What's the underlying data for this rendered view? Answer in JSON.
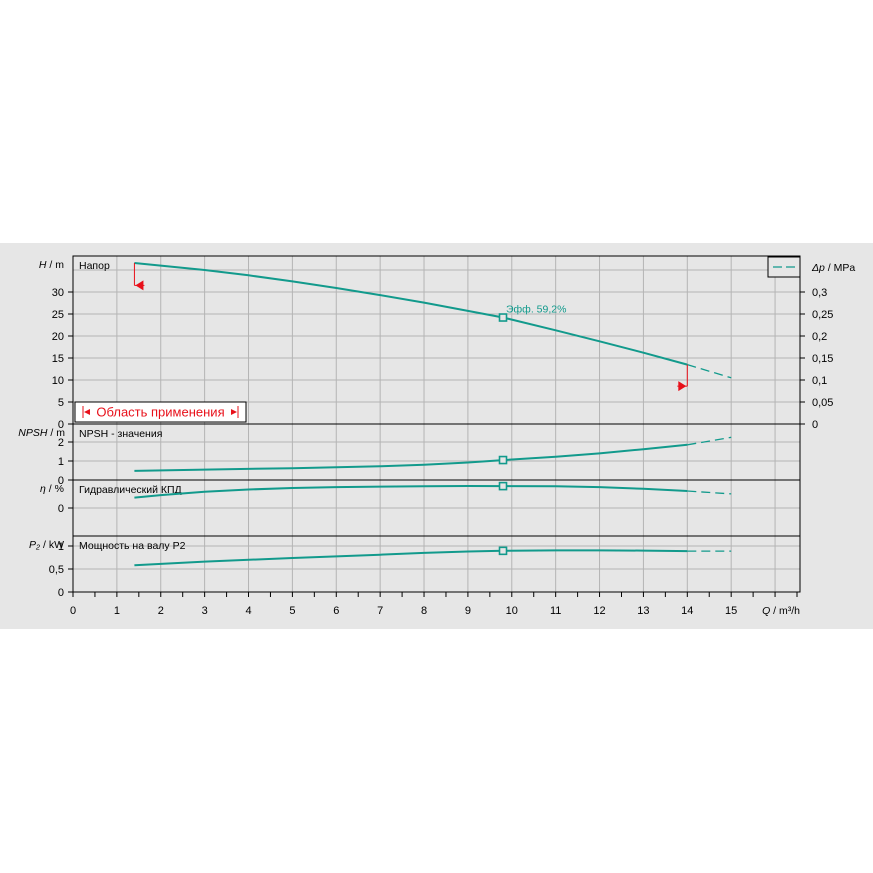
{
  "chart_data": {
    "type": "line",
    "x": {
      "label_var": "Q",
      "label_unit": "m³/h",
      "min": 0,
      "max": 16.5,
      "ticks": [
        0,
        1,
        2,
        3,
        4,
        5,
        6,
        7,
        8,
        9,
        10,
        11,
        12,
        13,
        14,
        15
      ]
    },
    "legend": {
      "placement": "top-right",
      "entries": [
        {
          "style": "dashed"
        }
      ]
    },
    "panels": [
      {
        "id": "head",
        "title": "Напор",
        "ylabel_var": "H",
        "ylabel_unit": "m",
        "ylim": [
          0,
          40
        ],
        "yticks": [
          0,
          5,
          10,
          15,
          20,
          25,
          30
        ],
        "right_axis": {
          "label_var": "Δp",
          "label_unit": "MPa",
          "ylim": [
            0,
            0.4
          ],
          "ticks": [
            "0",
            "0,05",
            "0,1",
            "0,15",
            "0,2",
            "0,25",
            "0,3"
          ]
        },
        "series": {
          "solid": [
            [
              1.4,
              36.6
            ],
            [
              2,
              36.0
            ],
            [
              3,
              35.0
            ],
            [
              4,
              33.8
            ],
            [
              5,
              32.4
            ],
            [
              6,
              30.9
            ],
            [
              7,
              29.3
            ],
            [
              8,
              27.6
            ],
            [
              9,
              25.7
            ],
            [
              9.8,
              24.2
            ],
            [
              11,
              21.3
            ],
            [
              12,
              18.8
            ],
            [
              13,
              16.2
            ],
            [
              14,
              13.5
            ]
          ],
          "dashed": [
            [
              14,
              13.5
            ],
            [
              14.5,
              12.0
            ],
            [
              15,
              10.5
            ]
          ]
        },
        "marker": {
          "x": 9.8,
          "y": 24.2,
          "label": "Эфф.  59,2%"
        },
        "range_box": {
          "label": "Область применения"
        },
        "range_limits": [
          {
            "x": 1.4,
            "y_from": 36.6,
            "y_to": 31.5
          },
          {
            "x": 14,
            "y_from": 13.5,
            "y_to": 8.6
          }
        ]
      },
      {
        "id": "npsh",
        "title": "NPSH - значения",
        "ylabel_var": "NPSH",
        "ylabel_unit": "m",
        "ylim": [
          0,
          2.2
        ],
        "yticks": [
          0,
          1,
          2
        ],
        "series": {
          "solid": [
            [
              1.4,
              0.48
            ],
            [
              3,
              0.55
            ],
            [
              5,
              0.62
            ],
            [
              7,
              0.72
            ],
            [
              8,
              0.8
            ],
            [
              9,
              0.92
            ],
            [
              9.8,
              1.05
            ],
            [
              11,
              1.22
            ],
            [
              12,
              1.4
            ],
            [
              13,
              1.62
            ],
            [
              14,
              1.85
            ]
          ],
          "dashed": [
            [
              14,
              1.85
            ],
            [
              14.5,
              2.05
            ],
            [
              15,
              2.25
            ]
          ]
        },
        "marker": {
          "x": 9.8,
          "y": 1.05
        }
      },
      {
        "id": "efficiency",
        "title": "Гидравлический КПД",
        "ylabel_var": "η",
        "ylabel_unit": "%",
        "ylim": [
          0,
          65
        ],
        "yticks": [
          0
        ],
        "series": {
          "solid": [
            [
              1.4,
              28
            ],
            [
              2,
              35
            ],
            [
              3,
              44
            ],
            [
              4,
              50
            ],
            [
              5,
              54
            ],
            [
              6,
              56.5
            ],
            [
              7,
              58
            ],
            [
              8,
              59
            ],
            [
              9,
              59.5
            ],
            [
              9.8,
              59.2
            ],
            [
              11,
              58.8
            ],
            [
              12,
              56.5
            ],
            [
              13,
              52
            ],
            [
              14,
              46
            ]
          ],
          "dashed": [
            [
              14,
              46
            ],
            [
              15,
              38
            ]
          ]
        },
        "marker": {
          "x": 9.8,
          "y": 59.2
        }
      },
      {
        "id": "power",
        "title": "Мощность на валу P2",
        "ylabel_var": "P₂",
        "ylabel_unit": "kW",
        "ylim": [
          0,
          1.05
        ],
        "yticks": [
          "0",
          "0,5",
          "1"
        ],
        "series": {
          "solid": [
            [
              1.4,
              0.58
            ],
            [
              3,
              0.66
            ],
            [
              5,
              0.74
            ],
            [
              7,
              0.81
            ],
            [
              8,
              0.85
            ],
            [
              9,
              0.88
            ],
            [
              9.8,
              0.895
            ],
            [
              11,
              0.905
            ],
            [
              12,
              0.905
            ],
            [
              13,
              0.9
            ],
            [
              14,
              0.89
            ]
          ],
          "dashed": [
            [
              14,
              0.89
            ],
            [
              15,
              0.89
            ]
          ]
        },
        "marker": {
          "x": 9.8,
          "y": 0.895
        }
      }
    ],
    "colors": {
      "curve": "#129a8c",
      "limit": "#e8101a",
      "grid": "#b4b4b4",
      "background": "#e6e6e6"
    }
  }
}
